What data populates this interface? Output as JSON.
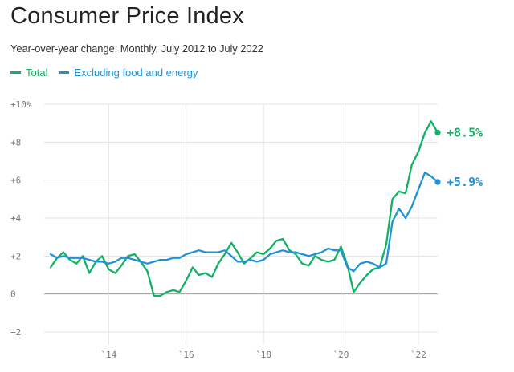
{
  "chart_data": {
    "type": "line",
    "title": "Consumer Price Index",
    "subtitle": "Year-over-year change; Monthly, July 2012 to July 2022",
    "xlabel": "",
    "ylabel": "",
    "ylim": [
      -3,
      10
    ],
    "xlim": [
      2012.5,
      2022.6
    ],
    "grid": true,
    "legend_position": "top-left",
    "y_ticks": [
      {
        "value": 10,
        "label": "+10%"
      },
      {
        "value": 8,
        "label": "+8"
      },
      {
        "value": 6,
        "label": "+6"
      },
      {
        "value": 4,
        "label": "+4"
      },
      {
        "value": 2,
        "label": "+2"
      },
      {
        "value": 0,
        "label": "0"
      },
      {
        "value": -2,
        "label": "−2"
      }
    ],
    "x_ticks": [
      {
        "value": 2014,
        "label": "`14"
      },
      {
        "value": 2016,
        "label": "`16"
      },
      {
        "value": 2018,
        "label": "`18"
      },
      {
        "value": 2020,
        "label": "`20"
      },
      {
        "value": 2022,
        "label": "`22"
      }
    ],
    "series": [
      {
        "name": "Total",
        "color": "#11b265",
        "end_label": "+8.5%",
        "points": [
          [
            2012.5,
            1.4
          ],
          [
            2012.67,
            1.9
          ],
          [
            2012.83,
            2.2
          ],
          [
            2013.0,
            1.8
          ],
          [
            2013.17,
            1.6
          ],
          [
            2013.33,
            2.0
          ],
          [
            2013.5,
            1.1
          ],
          [
            2013.67,
            1.7
          ],
          [
            2013.83,
            2.0
          ],
          [
            2014.0,
            1.3
          ],
          [
            2014.17,
            1.1
          ],
          [
            2014.33,
            1.5
          ],
          [
            2014.5,
            2.0
          ],
          [
            2014.67,
            2.1
          ],
          [
            2014.83,
            1.7
          ],
          [
            2015.0,
            1.2
          ],
          [
            2015.17,
            -0.1
          ],
          [
            2015.33,
            -0.1
          ],
          [
            2015.5,
            0.1
          ],
          [
            2015.67,
            0.2
          ],
          [
            2015.83,
            0.1
          ],
          [
            2016.0,
            0.7
          ],
          [
            2016.17,
            1.4
          ],
          [
            2016.33,
            1.0
          ],
          [
            2016.5,
            1.1
          ],
          [
            2016.67,
            0.9
          ],
          [
            2016.83,
            1.6
          ],
          [
            2017.0,
            2.1
          ],
          [
            2017.17,
            2.7
          ],
          [
            2017.33,
            2.2
          ],
          [
            2017.5,
            1.6
          ],
          [
            2017.67,
            1.9
          ],
          [
            2017.83,
            2.2
          ],
          [
            2018.0,
            2.1
          ],
          [
            2018.17,
            2.4
          ],
          [
            2018.33,
            2.8
          ],
          [
            2018.5,
            2.9
          ],
          [
            2018.67,
            2.3
          ],
          [
            2018.83,
            2.1
          ],
          [
            2019.0,
            1.6
          ],
          [
            2019.17,
            1.5
          ],
          [
            2019.33,
            2.0
          ],
          [
            2019.5,
            1.8
          ],
          [
            2019.67,
            1.7
          ],
          [
            2019.83,
            1.8
          ],
          [
            2020.0,
            2.5
          ],
          [
            2020.17,
            1.5
          ],
          [
            2020.33,
            0.1
          ],
          [
            2020.5,
            0.6
          ],
          [
            2020.67,
            1.0
          ],
          [
            2020.83,
            1.3
          ],
          [
            2021.0,
            1.4
          ],
          [
            2021.17,
            2.6
          ],
          [
            2021.33,
            5.0
          ],
          [
            2021.5,
            5.4
          ],
          [
            2021.67,
            5.3
          ],
          [
            2021.83,
            6.8
          ],
          [
            2022.0,
            7.5
          ],
          [
            2022.17,
            8.5
          ],
          [
            2022.33,
            9.1
          ],
          [
            2022.5,
            8.5
          ]
        ]
      },
      {
        "name": "Excluding food and energy",
        "color": "#1f93d6",
        "end_label": "+5.9%",
        "points": [
          [
            2012.5,
            2.1
          ],
          [
            2012.67,
            1.9
          ],
          [
            2012.83,
            2.0
          ],
          [
            2013.0,
            1.9
          ],
          [
            2013.17,
            1.9
          ],
          [
            2013.33,
            1.9
          ],
          [
            2013.5,
            1.8
          ],
          [
            2013.67,
            1.7
          ],
          [
            2013.83,
            1.7
          ],
          [
            2014.0,
            1.6
          ],
          [
            2014.17,
            1.7
          ],
          [
            2014.33,
            1.9
          ],
          [
            2014.5,
            1.9
          ],
          [
            2014.67,
            1.8
          ],
          [
            2014.83,
            1.7
          ],
          [
            2015.0,
            1.6
          ],
          [
            2015.17,
            1.7
          ],
          [
            2015.33,
            1.8
          ],
          [
            2015.5,
            1.8
          ],
          [
            2015.67,
            1.9
          ],
          [
            2015.83,
            1.9
          ],
          [
            2016.0,
            2.1
          ],
          [
            2016.17,
            2.2
          ],
          [
            2016.33,
            2.3
          ],
          [
            2016.5,
            2.2
          ],
          [
            2016.67,
            2.2
          ],
          [
            2016.83,
            2.2
          ],
          [
            2017.0,
            2.3
          ],
          [
            2017.17,
            2.0
          ],
          [
            2017.33,
            1.7
          ],
          [
            2017.5,
            1.7
          ],
          [
            2017.67,
            1.8
          ],
          [
            2017.83,
            1.7
          ],
          [
            2018.0,
            1.8
          ],
          [
            2018.17,
            2.1
          ],
          [
            2018.33,
            2.2
          ],
          [
            2018.5,
            2.3
          ],
          [
            2018.67,
            2.2
          ],
          [
            2018.83,
            2.2
          ],
          [
            2019.0,
            2.1
          ],
          [
            2019.17,
            2.0
          ],
          [
            2019.33,
            2.1
          ],
          [
            2019.5,
            2.2
          ],
          [
            2019.67,
            2.4
          ],
          [
            2019.83,
            2.3
          ],
          [
            2020.0,
            2.3
          ],
          [
            2020.17,
            1.4
          ],
          [
            2020.33,
            1.2
          ],
          [
            2020.5,
            1.6
          ],
          [
            2020.67,
            1.7
          ],
          [
            2020.83,
            1.6
          ],
          [
            2021.0,
            1.4
          ],
          [
            2021.17,
            1.6
          ],
          [
            2021.33,
            3.8
          ],
          [
            2021.5,
            4.5
          ],
          [
            2021.67,
            4.0
          ],
          [
            2021.83,
            4.6
          ],
          [
            2022.0,
            5.5
          ],
          [
            2022.17,
            6.4
          ],
          [
            2022.33,
            6.2
          ],
          [
            2022.5,
            5.9
          ]
        ]
      }
    ]
  }
}
